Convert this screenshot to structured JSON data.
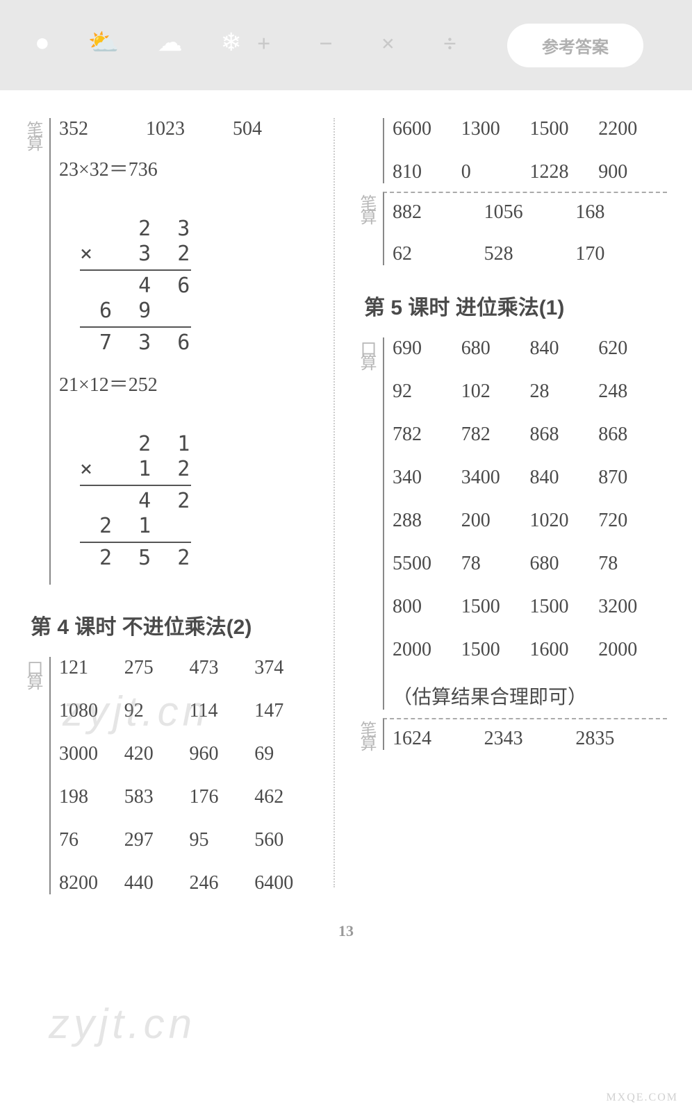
{
  "header": {
    "pill": "参考答案",
    "ops": [
      "+",
      "−",
      "×",
      "÷"
    ]
  },
  "left": {
    "bi_label": "笔算",
    "top_row": [
      "352",
      "1023",
      "504"
    ],
    "eq1": "23×32＝736",
    "mult1": {
      "r1": "   2 3",
      "r2": "×  3 2",
      "r3": "   4 6",
      "r4": " 6 9",
      "r5": " 7 3 6"
    },
    "eq2": "21×12＝252",
    "mult2": {
      "r1": "   2 1",
      "r2": "×  1 2",
      "r3": "   4 2",
      "r4": " 2 1",
      "r5": " 2 5 2"
    },
    "lesson4": "第 4 课时  不进位乘法(2)",
    "kou_label": "口算",
    "kou4": [
      "121",
      "275",
      "473",
      "374",
      "1080",
      "92",
      "114",
      "147",
      "3000",
      "420",
      "960",
      "69",
      "198",
      "583",
      "176",
      "462",
      "76",
      "297",
      "95",
      "560",
      "8200",
      "440",
      "246",
      "6400"
    ]
  },
  "right": {
    "kou_top": [
      "6600",
      "1300",
      "1500",
      "2200",
      "810",
      "0",
      "1228",
      "900"
    ],
    "bi_label": "笔算",
    "bi_top": [
      "882",
      "1056",
      "168",
      "62",
      "528",
      "170"
    ],
    "lesson5": "第 5 课时  进位乘法(1)",
    "kou_label": "口算",
    "kou5": [
      "690",
      "680",
      "840",
      "620",
      "92",
      "102",
      "28",
      "248",
      "782",
      "782",
      "868",
      "868",
      "340",
      "3400",
      "840",
      "870",
      "288",
      "200",
      "1020",
      "720",
      "5500",
      "78",
      "680",
      "78",
      "800",
      "1500",
      "1500",
      "3200",
      "2000",
      "1500",
      "1600",
      "2000"
    ],
    "note": "（估算结果合理即可）",
    "bi5_label": "笔算",
    "bi5": [
      "1624",
      "2343",
      "2835"
    ]
  },
  "page": "13",
  "watermark": "zyjt.cn",
  "corner": "MXQE.COM"
}
